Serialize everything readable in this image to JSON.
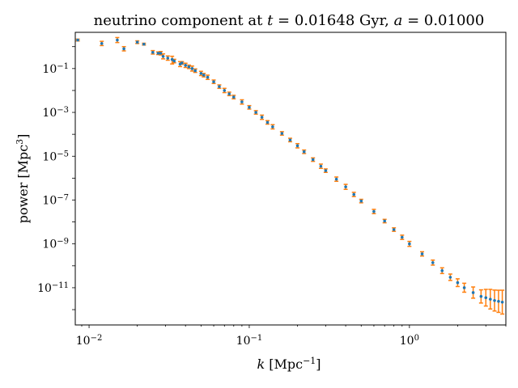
{
  "chart_data": {
    "type": "scatter",
    "title": "neutrino component at t = 0.01648 Gyr, a = 0.01000",
    "title_parts": {
      "prefix": "neutrino component at ",
      "t_symbol": "t",
      "t_value": " = 0.01648 Gyr, ",
      "a_symbol": "a",
      "a_value": " = 0.01000"
    },
    "xlabel": "k [Mpc^-1]",
    "xlabel_parts": {
      "symbol": "k",
      "unit_open": " [Mpc",
      "unit_exp": "−1",
      "unit_close": "]"
    },
    "ylabel": "power [Mpc^3]",
    "ylabel_parts": {
      "text": "power [Mpc",
      "exp": "3",
      "close": "]"
    },
    "xscale": "log",
    "yscale": "log",
    "xlim": [
      0.0082,
      4.0
    ],
    "ylim": [
      2e-13,
      4.5
    ],
    "x_ticks": [
      {
        "value": 0.01,
        "base": "10",
        "exp": "−2"
      },
      {
        "value": 0.1,
        "base": "10",
        "exp": "−1"
      },
      {
        "value": 1,
        "base": "10",
        "exp": "0"
      }
    ],
    "y_ticks": [
      {
        "value": 1e-11,
        "base": "10",
        "exp": "−11"
      },
      {
        "value": 1e-09,
        "base": "10",
        "exp": "−9"
      },
      {
        "value": 1e-07,
        "base": "10",
        "exp": "−7"
      },
      {
        "value": 1e-05,
        "base": "10",
        "exp": "−5"
      },
      {
        "value": 0.001,
        "base": "10",
        "exp": "−3"
      },
      {
        "value": 0.1,
        "base": "10",
        "exp": "−1"
      }
    ],
    "grid": false,
    "legend": "none",
    "colors": {
      "points": "#1f77b4",
      "errorbars": "#ff7f0e"
    },
    "series": [
      {
        "x": [
          0.0085,
          0.012,
          0.015,
          0.0165,
          0.02,
          0.022,
          0.025,
          0.027,
          0.028,
          0.029,
          0.031,
          0.033,
          0.034,
          0.037,
          0.038,
          0.04,
          0.042,
          0.044,
          0.046,
          0.05,
          0.052,
          0.055,
          0.06,
          0.065,
          0.07,
          0.075,
          0.08,
          0.09,
          0.1,
          0.11,
          0.12,
          0.13,
          0.14,
          0.16,
          0.18,
          0.2,
          0.22,
          0.25,
          0.28,
          0.3,
          0.35,
          0.4,
          0.45,
          0.5,
          0.6,
          0.7,
          0.8,
          0.9,
          1.0,
          1.2,
          1.4,
          1.6,
          1.8,
          2.0,
          2.2,
          2.5,
          2.8,
          3.0,
          3.2,
          3.4,
          3.6,
          3.8
        ],
        "y": [
          2.0,
          1.4,
          2.0,
          0.8,
          1.6,
          1.3,
          0.55,
          0.5,
          0.5,
          0.36,
          0.3,
          0.26,
          0.22,
          0.16,
          0.18,
          0.14,
          0.12,
          0.1,
          0.08,
          0.06,
          0.05,
          0.04,
          0.025,
          0.015,
          0.01,
          0.007,
          0.005,
          0.003,
          0.0017,
          0.001,
          0.0006,
          0.00035,
          0.00022,
          0.00011,
          5.5e-05,
          3e-05,
          1.6e-05,
          7e-06,
          3.5e-06,
          2.2e-06,
          9e-07,
          4e-07,
          1.8e-07,
          9e-08,
          3e-08,
          1.1e-08,
          4.5e-09,
          2e-09,
          1e-09,
          3.5e-10,
          1.4e-10,
          6e-11,
          3e-11,
          1.7e-11,
          1e-11,
          6e-12,
          4e-12,
          3.5e-12,
          3e-12,
          2.6e-12,
          2.4e-12,
          2.2e-12
        ],
        "err_up": [
          1.1,
          1.25,
          1.3,
          1.25,
          1.15,
          1.1,
          1.2,
          1.15,
          1.2,
          1.3,
          1.25,
          1.4,
          1.2,
          1.3,
          1.15,
          1.25,
          1.2,
          1.3,
          1.2,
          1.25,
          1.2,
          1.25,
          1.2,
          1.2,
          1.25,
          1.2,
          1.2,
          1.25,
          1.2,
          1.2,
          1.25,
          1.2,
          1.25,
          1.2,
          1.2,
          1.25,
          1.2,
          1.2,
          1.25,
          1.2,
          1.25,
          1.3,
          1.25,
          1.2,
          1.25,
          1.2,
          1.2,
          1.25,
          1.3,
          1.25,
          1.3,
          1.35,
          1.4,
          1.5,
          1.6,
          1.8,
          2.0,
          2.4,
          2.8,
          3.0,
          3.2,
          3.5
        ],
        "err_dn": [
          1.1,
          1.25,
          1.3,
          1.25,
          1.15,
          1.1,
          1.2,
          1.15,
          1.2,
          1.3,
          1.25,
          1.6,
          1.2,
          1.3,
          1.15,
          1.25,
          1.2,
          1.3,
          1.2,
          1.25,
          1.2,
          1.25,
          1.2,
          1.2,
          1.25,
          1.2,
          1.2,
          1.25,
          1.2,
          1.2,
          1.25,
          1.2,
          1.25,
          1.2,
          1.2,
          1.25,
          1.2,
          1.2,
          1.25,
          1.2,
          1.25,
          1.3,
          1.25,
          1.2,
          1.25,
          1.2,
          1.2,
          1.25,
          1.3,
          1.25,
          1.3,
          1.35,
          1.4,
          1.5,
          1.6,
          1.8,
          2.0,
          2.4,
          2.8,
          3.0,
          3.2,
          3.5
        ]
      }
    ]
  }
}
